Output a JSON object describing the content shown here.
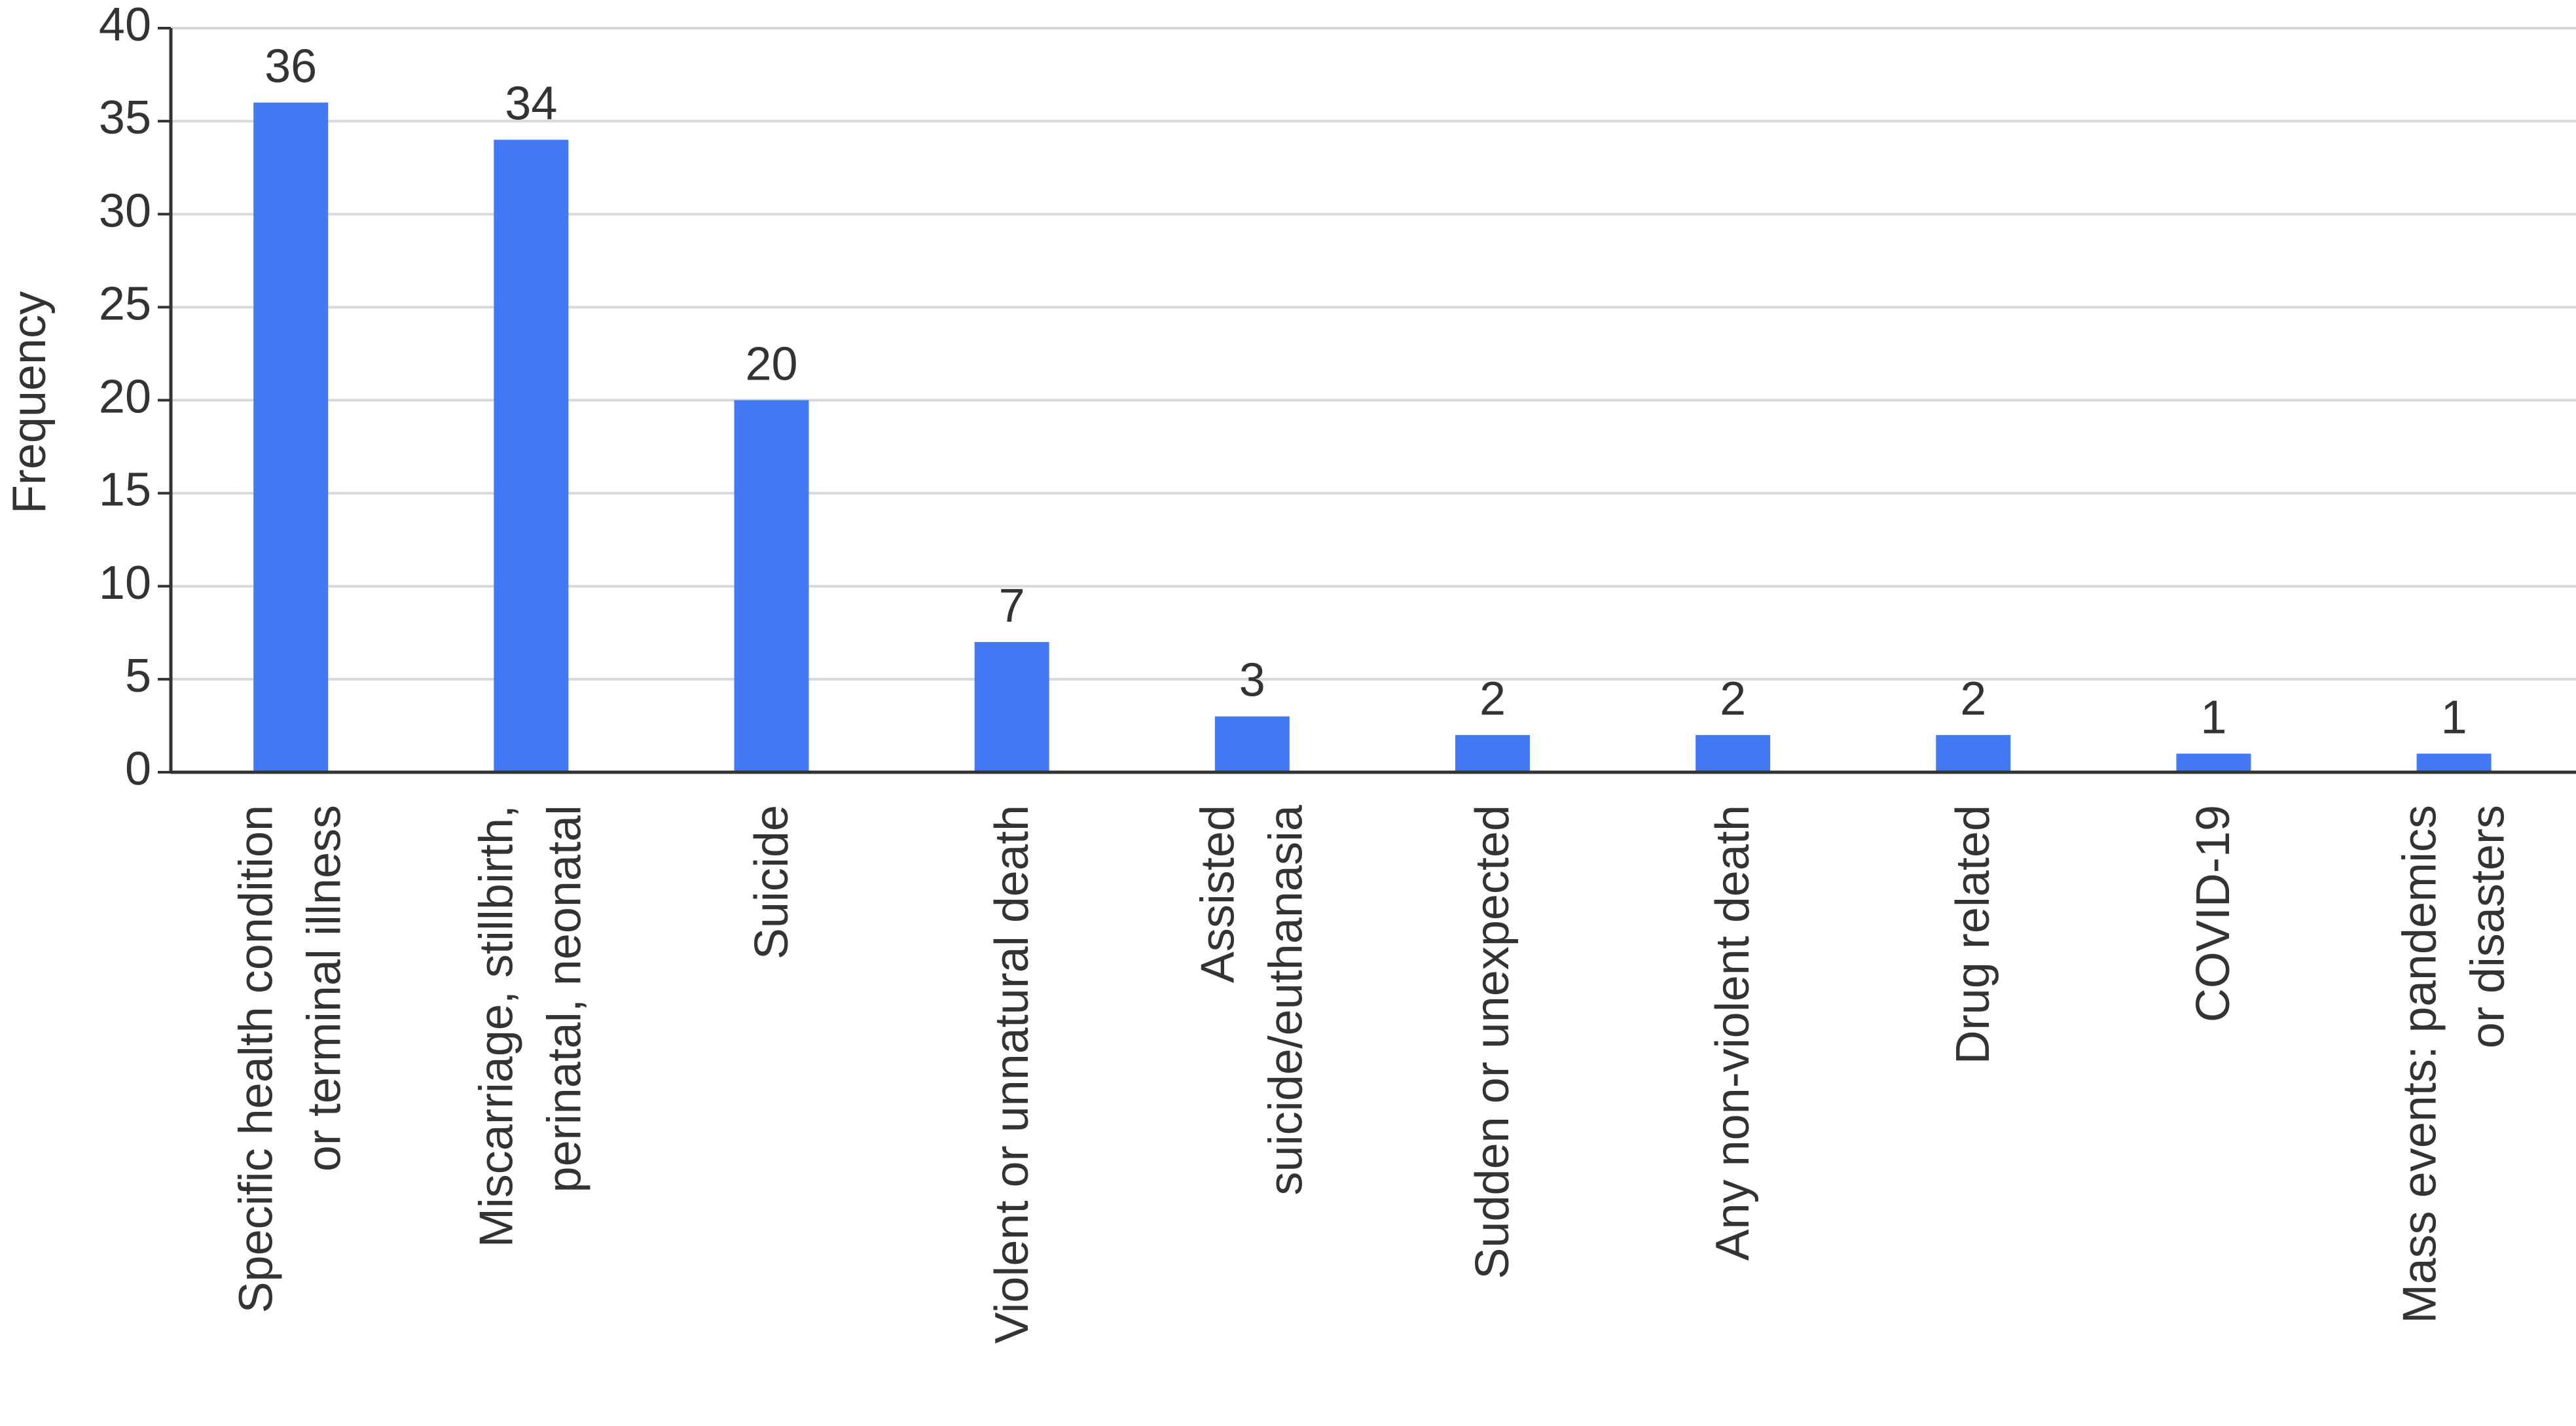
{
  "chart_data": {
    "type": "bar",
    "y_label": "Frequency",
    "categories": [
      "Specific health condition\nor terminal illness",
      "Miscarriage, stillbirth,\nperinatal, neonatal",
      "Suicide",
      "Violent or unnatural death",
      "Assisted\nsuicide/euthanasia",
      "Sudden or unexpected",
      "Any non-violent death",
      "Drug related",
      "COVID-19",
      "Mass events: pandemics\nor disasters"
    ],
    "values": [
      36,
      34,
      20,
      7,
      3,
      2,
      2,
      2,
      1,
      1
    ],
    "color": "#4479f6",
    "ylim": [
      0,
      40
    ],
    "yticks": [
      0,
      5,
      10,
      15,
      20,
      25,
      30,
      35,
      40
    ],
    "grid": true
  }
}
